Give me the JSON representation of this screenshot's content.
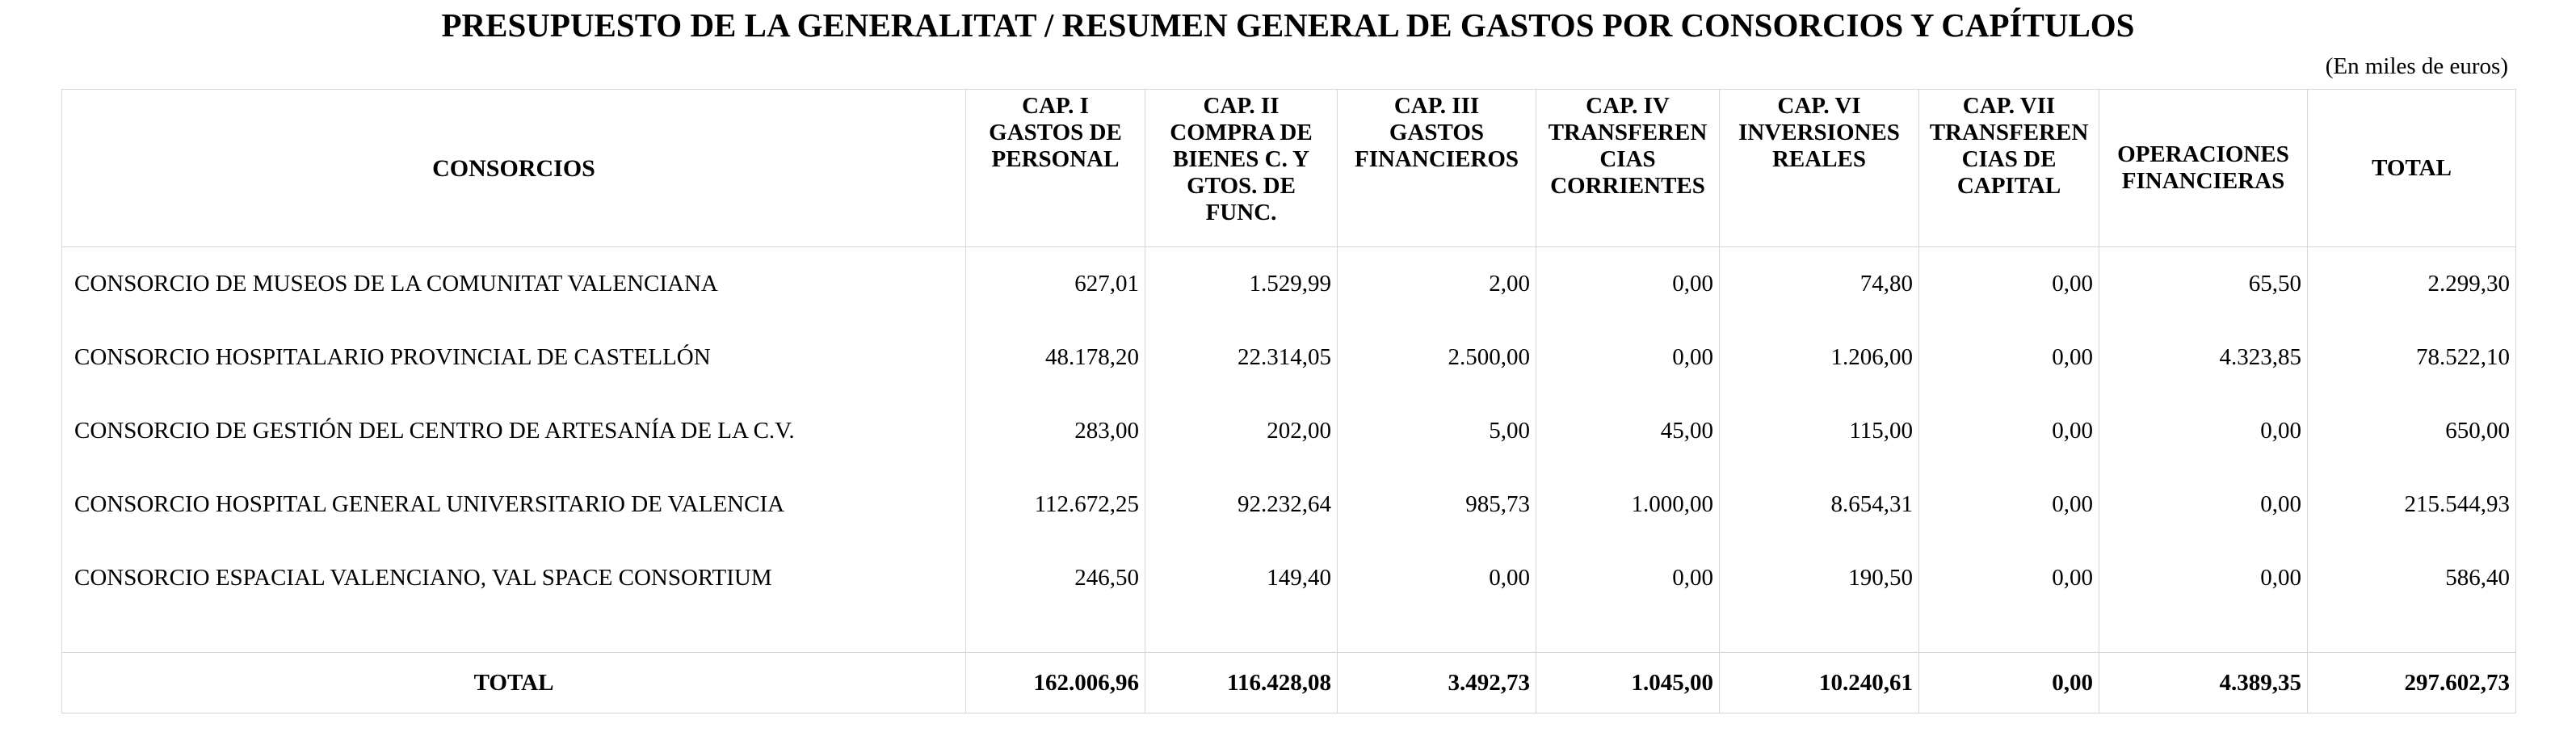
{
  "title": "PRESUPUESTO DE LA GENERALITAT / RESUMEN GENERAL DE GASTOS POR CONSORCIOS Y CAPÍTULOS",
  "units": "(En miles de euros)",
  "table": {
    "headers": {
      "consorcios": "CONSORCIOS",
      "cap1": "CAP. I\nGASTOS DE\nPERSONAL",
      "cap2": "CAP. II\nCOMPRA DE\nBIENES C. Y\nGTOS. DE\nFUNC.",
      "cap3": "CAP. III\nGASTOS\nFINANCIEROS",
      "cap4": "CAP. IV\nTRANSFEREN\nCIAS\nCORRIENTES",
      "cap6": "CAP. VI\nINVERSIONES\nREALES",
      "cap7": "CAP. VII\nTRANSFEREN\nCIAS DE\nCAPITAL",
      "opfin": "OPERACIONES\nFINANCIERAS",
      "total": "TOTAL"
    },
    "rows": [
      {
        "name": "CONSORCIO DE MUSEOS DE LA COMUNITAT VALENCIANA",
        "cap1": "627,01",
        "cap2": "1.529,99",
        "cap3": "2,00",
        "cap4": "0,00",
        "cap6": "74,80",
        "cap7": "0,00",
        "opfin": "65,50",
        "total": "2.299,30"
      },
      {
        "name": "CONSORCIO HOSPITALARIO PROVINCIAL DE CASTELLÓN",
        "cap1": "48.178,20",
        "cap2": "22.314,05",
        "cap3": "2.500,00",
        "cap4": "0,00",
        "cap6": "1.206,00",
        "cap7": "0,00",
        "opfin": "4.323,85",
        "total": "78.522,10"
      },
      {
        "name": "CONSORCIO DE GESTIÓN DEL CENTRO DE ARTESANÍA DE LA C.V.",
        "cap1": "283,00",
        "cap2": "202,00",
        "cap3": "5,00",
        "cap4": "45,00",
        "cap6": "115,00",
        "cap7": "0,00",
        "opfin": "0,00",
        "total": "650,00"
      },
      {
        "name": "CONSORCIO HOSPITAL GENERAL UNIVERSITARIO DE VALENCIA",
        "cap1": "112.672,25",
        "cap2": "92.232,64",
        "cap3": "985,73",
        "cap4": "1.000,00",
        "cap6": "8.654,31",
        "cap7": "0,00",
        "opfin": "0,00",
        "total": "215.544,93"
      },
      {
        "name": "CONSORCIO ESPACIAL VALENCIANO, VAL SPACE CONSORTIUM",
        "cap1": "246,50",
        "cap2": "149,40",
        "cap3": "0,00",
        "cap4": "0,00",
        "cap6": "190,50",
        "cap7": "0,00",
        "opfin": "0,00",
        "total": "586,40"
      }
    ],
    "totals": {
      "label": "TOTAL",
      "cap1": "162.006,96",
      "cap2": "116.428,08",
      "cap3": "3.492,73",
      "cap4": "1.045,00",
      "cap6": "10.240,61",
      "cap7": "0,00",
      "opfin": "4.389,35",
      "total": "297.602,73"
    }
  }
}
